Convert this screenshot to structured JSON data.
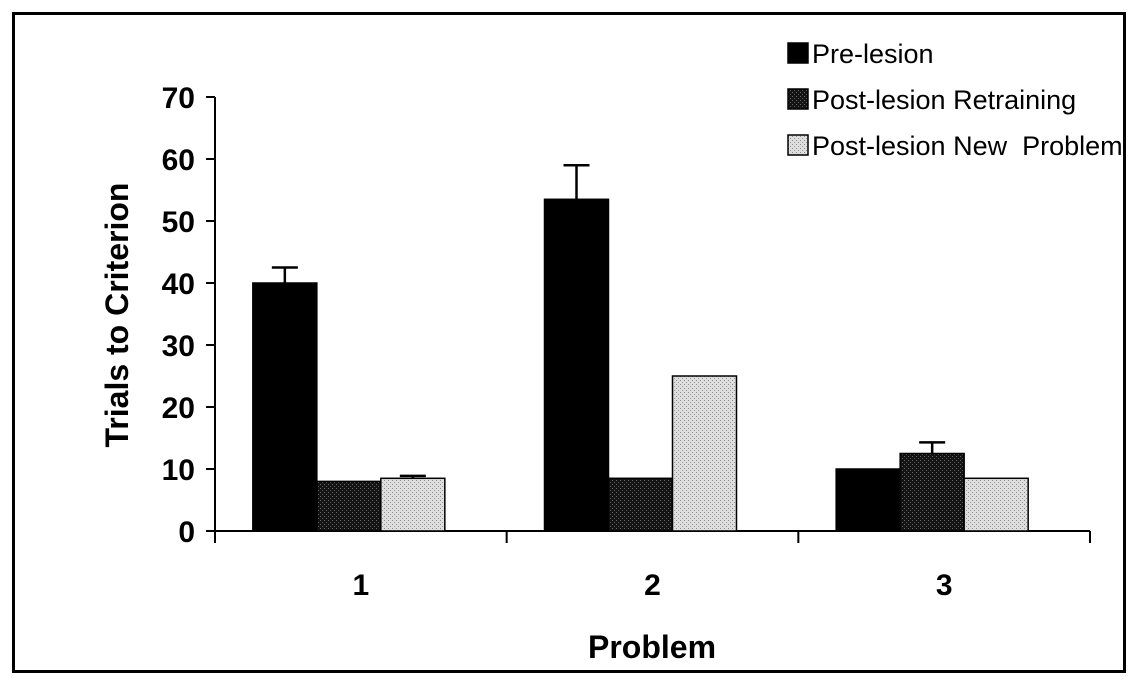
{
  "chart_data": {
    "type": "bar",
    "title": "",
    "xlabel": "Problem",
    "ylabel": "Trials to Criterion",
    "categories": [
      "1",
      "2",
      "3"
    ],
    "ylim": [
      0,
      70
    ],
    "yticks": [
      0,
      10,
      20,
      30,
      40,
      50,
      60,
      70
    ],
    "grid": false,
    "legend_position": "top-right",
    "series": [
      {
        "name": "Pre-lesion",
        "values": [
          40,
          53.5,
          10
        ],
        "errors": [
          2.5,
          5.5,
          0
        ],
        "color": "#000000",
        "pattern": "solid"
      },
      {
        "name": "Post-lesion Retraining",
        "values": [
          8,
          8.5,
          12.5
        ],
        "errors": [
          0,
          0,
          1.8
        ],
        "color": "#1e1e1e",
        "pattern": "dark-stipple"
      },
      {
        "name": "Post-lesion New  Problem",
        "values": [
          8.5,
          25,
          8.5
        ],
        "errors": [
          0.4,
          0,
          0
        ],
        "color": "#c9c9c9",
        "pattern": "light-stipple"
      }
    ]
  }
}
